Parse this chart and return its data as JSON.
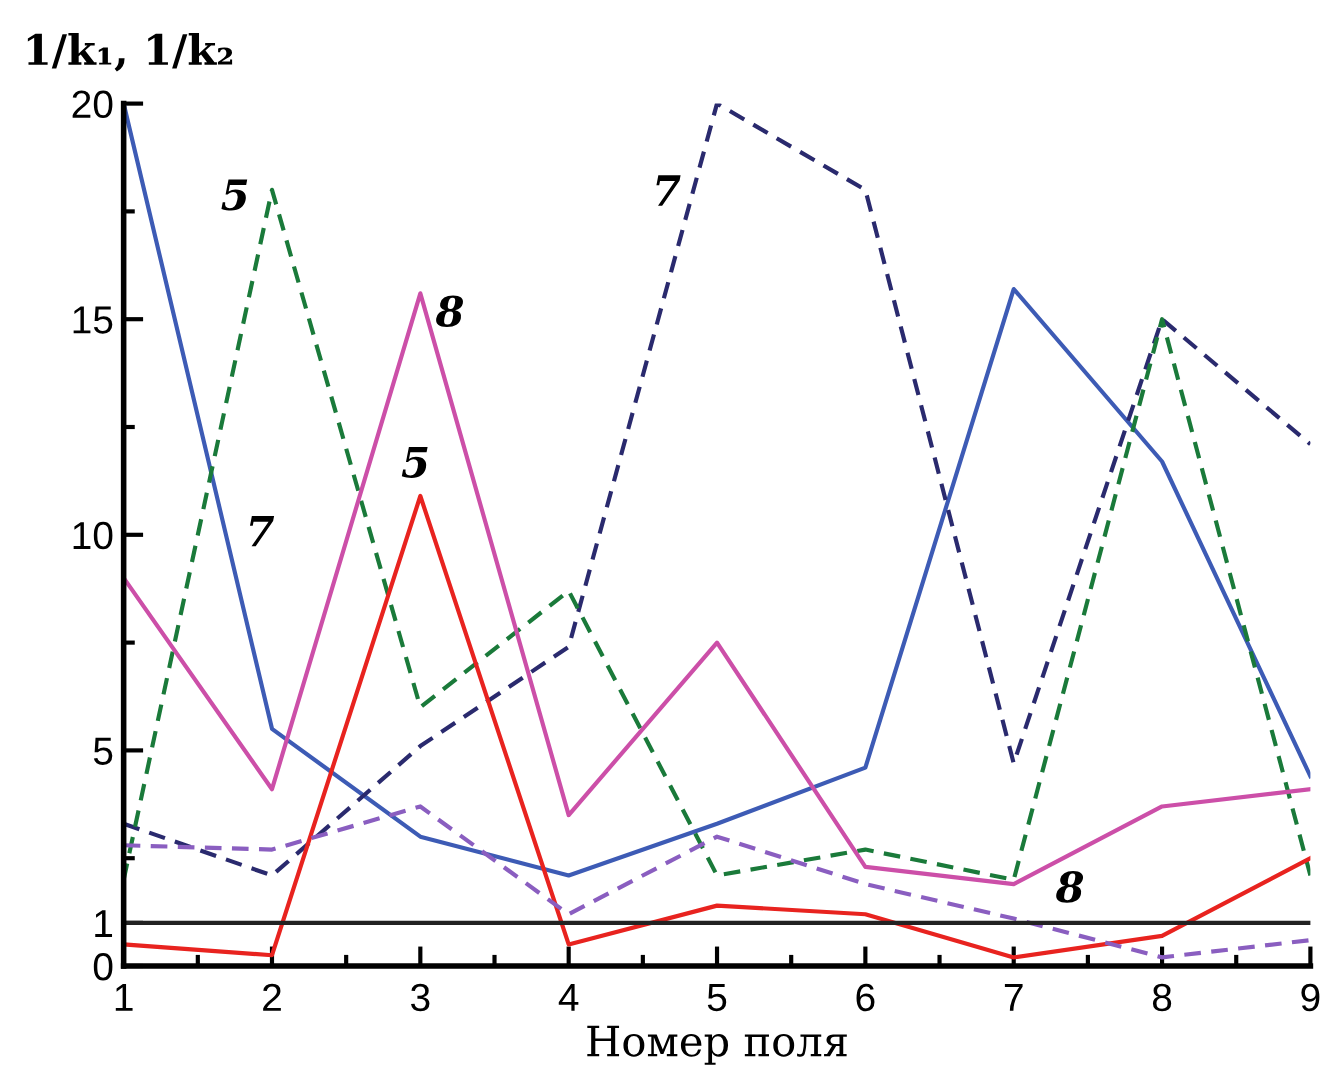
{
  "chart_data": {
    "type": "line",
    "ylabel": "1/k₁, 1/k₂",
    "xlabel": "Номер поля",
    "x": [
      1,
      2,
      3,
      4,
      5,
      6,
      7,
      8,
      9
    ],
    "xlim": [
      1,
      9
    ],
    "ylim": [
      0,
      20
    ],
    "xticks": [
      1,
      {
        "value": 1.5,
        "label": null
      },
      2,
      {
        "value": 2.5,
        "label": null
      },
      3,
      {
        "value": 3.5,
        "label": null
      },
      4,
      {
        "value": 4.5,
        "label": null
      },
      5,
      {
        "value": 5.5,
        "label": null
      },
      6,
      {
        "value": 6.5,
        "label": null
      },
      7,
      {
        "value": 7.5,
        "label": null
      },
      8,
      {
        "value": 8.5,
        "label": null
      },
      9
    ],
    "yticks": [
      0,
      1,
      {
        "value": 2.5,
        "label": null
      },
      5,
      {
        "value": 7.5,
        "label": null
      },
      10,
      {
        "value": 12.5,
        "label": null
      },
      15,
      {
        "value": 17.5,
        "label": null
      },
      20
    ],
    "grid": false,
    "legend": false,
    "marker": "none",
    "series": [
      {
        "color": "#3d5bb5",
        "line_style": "solid",
        "values": [
          20,
          5.5,
          3.0,
          2.1,
          3.3,
          4.6,
          15.7,
          11.7,
          4.4
        ]
      },
      {
        "color": "#2a2a6e",
        "line_style": "dashed",
        "values": [
          3.3,
          2.1,
          5.1,
          7.4,
          20,
          18,
          4.7,
          15,
          12.1
        ]
      },
      {
        "color": "#1a7a3a",
        "line_style": "dashed",
        "values": [
          2.0,
          18,
          6.0,
          8.7,
          2.1,
          2.7,
          2.0,
          15,
          2.1
        ]
      },
      {
        "color": "#cc4fa8",
        "line_style": "solid",
        "values": [
          9.0,
          4.1,
          15.6,
          3.5,
          7.5,
          2.3,
          1.9,
          3.7,
          4.1
        ]
      },
      {
        "color": "#e8231f",
        "line_style": "solid",
        "values": [
          0.5,
          0.25,
          10.9,
          0.5,
          1.4,
          1.2,
          0.2,
          0.7,
          2.5
        ]
      },
      {
        "color": "#8a5ec0",
        "line_style": "dashed",
        "values": [
          2.8,
          2.7,
          3.7,
          1.2,
          3.0,
          1.9,
          1.1,
          0.2,
          0.6
        ]
      }
    ],
    "ref_lines": [
      {
        "axis": "y",
        "value": 1,
        "label": null,
        "color": "#222222",
        "line_style": "solid"
      }
    ],
    "annotations": [
      "5",
      "7",
      "8",
      "5",
      "7",
      "8"
    ]
  }
}
